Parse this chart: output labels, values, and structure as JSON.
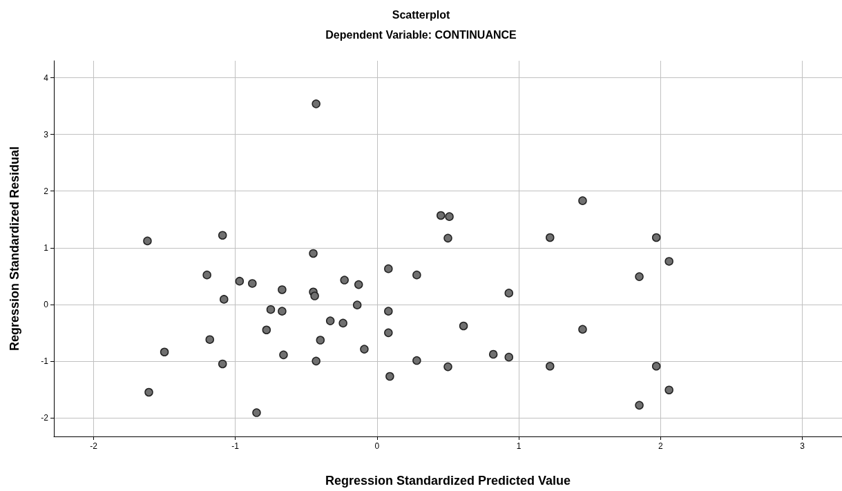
{
  "chart_data": {
    "type": "scatter",
    "title": "Scatterplot",
    "subtitle": "Dependent Variable: CONTINUANCE",
    "xlabel": "Regression Standardized Predicted Value",
    "ylabel": "Regression Standardized Residual",
    "x": [
      -1.62,
      -1.61,
      -1.5,
      -1.09,
      -1.2,
      -1.08,
      -1.18,
      -1.09,
      -0.97,
      -0.88,
      -0.85,
      -0.75,
      -0.78,
      -0.67,
      -0.67,
      -0.66,
      -0.45,
      -0.45,
      -0.44,
      -0.43,
      -0.43,
      -0.4,
      -0.33,
      -0.24,
      -0.23,
      -0.13,
      -0.14,
      -0.09,
      0.08,
      0.08,
      0.08,
      0.09,
      0.28,
      0.28,
      0.45,
      0.51,
      0.5,
      0.5,
      0.61,
      0.82,
      0.93,
      0.93,
      1.22,
      1.22,
      1.45,
      1.45,
      1.85,
      1.85,
      1.97,
      1.97,
      2.06,
      2.06
    ],
    "values": [
      1.12,
      -1.55,
      -0.84,
      1.22,
      0.52,
      0.09,
      -0.62,
      -1.05,
      0.41,
      0.37,
      -1.91,
      -0.09,
      -0.45,
      0.26,
      -0.12,
      -0.89,
      0.9,
      0.22,
      0.15,
      3.54,
      -1.0,
      -0.63,
      -0.29,
      -0.33,
      0.43,
      0.35,
      -0.01,
      -0.79,
      0.63,
      -0.12,
      -0.5,
      -1.27,
      0.52,
      -0.99,
      1.57,
      1.55,
      1.17,
      -1.1,
      -0.38,
      -0.88,
      0.2,
      -0.93,
      1.18,
      -1.09,
      1.83,
      -0.44,
      0.49,
      -1.78,
      1.18,
      -1.09,
      0.76,
      -1.51
    ],
    "color": "#707070",
    "marker": "circle",
    "grid": true,
    "xlim": [
      -2.28,
      3.28
    ],
    "xticks": [
      -2,
      -1,
      0,
      1,
      2,
      3
    ],
    "ylim": [
      -2.33,
      4.3
    ],
    "yticks": [
      -2,
      -1,
      0,
      1,
      2,
      3,
      4
    ]
  }
}
